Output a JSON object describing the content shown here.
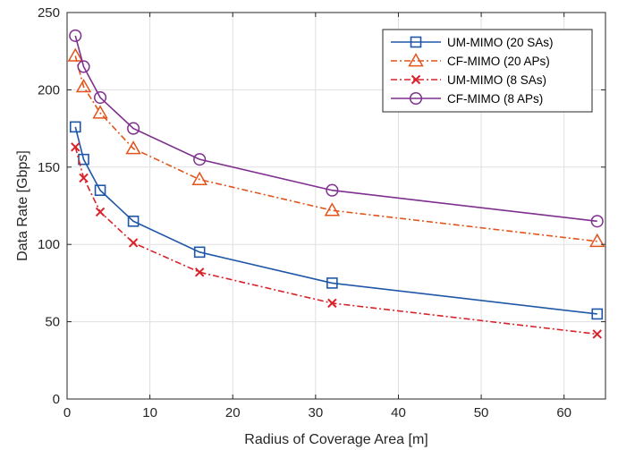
{
  "chart_data": {
    "type": "line",
    "title": "",
    "xlabel": "Radius of Coverage Area [m]",
    "ylabel": "Data Rate [Gbps]",
    "xlim": [
      0,
      65
    ],
    "ylim": [
      0,
      250
    ],
    "xticks": [
      0,
      10,
      20,
      30,
      40,
      50,
      60
    ],
    "yticks": [
      0,
      50,
      100,
      150,
      200,
      250
    ],
    "grid": true,
    "legend_position": "top-right",
    "x": [
      1,
      2,
      4,
      8,
      16,
      32,
      64
    ],
    "series": [
      {
        "name": "UM-MIMO (20 SAs)",
        "values": [
          176,
          155,
          135,
          115,
          95,
          75,
          55
        ],
        "color": "#1f57a8",
        "marker": "square",
        "dash": "solid"
      },
      {
        "name": "CF-MIMO (20 APs)",
        "values": [
          222,
          202,
          185,
          162,
          142,
          122,
          102
        ],
        "color": "#e2541c",
        "marker": "triangle",
        "dash": "dashdot"
      },
      {
        "name": "UM-MIMO (8 SAs)",
        "values": [
          163,
          143,
          121,
          101,
          82,
          62,
          42
        ],
        "color": "#d8222a",
        "marker": "x",
        "dash": "dashdot"
      },
      {
        "name": "CF-MIMO (8 APs)",
        "values": [
          235,
          215,
          195,
          175,
          155,
          135,
          115
        ],
        "color": "#7e2f8e",
        "marker": "circle",
        "dash": "solid"
      }
    ]
  }
}
